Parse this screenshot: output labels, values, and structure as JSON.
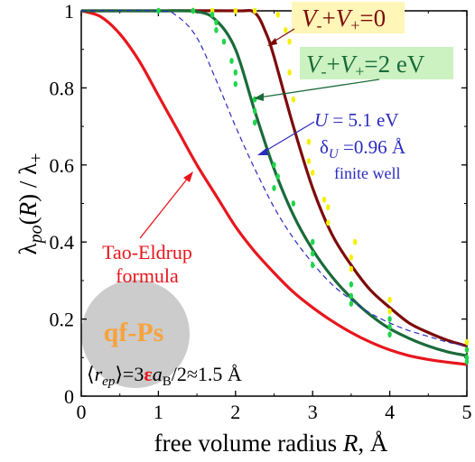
{
  "chart_data": {
    "type": "line",
    "xlabel": "free volume radius R, Å",
    "ylabel": "λpo(R) / λ+",
    "xlim": [
      0,
      5
    ],
    "ylim": [
      0,
      1
    ],
    "xticks": [
      0,
      1,
      2,
      3,
      4,
      5
    ],
    "yticks": [
      0,
      0.2,
      0.4,
      0.6,
      0.8,
      1
    ],
    "ytick_labels": [
      "0",
      "0.2",
      "0.4",
      "0.6",
      "0.8",
      "1"
    ],
    "series": [
      {
        "name": "Tao-Eldrup formula",
        "color": "#e8161c",
        "style": "solid",
        "x": [
          0,
          0.25,
          0.5,
          0.75,
          1.0,
          1.25,
          1.5,
          1.75,
          2.0,
          2.25,
          2.5,
          2.75,
          3.0,
          3.25,
          3.5,
          3.75,
          4.0,
          4.25,
          4.5,
          4.75,
          5.0
        ],
        "y": [
          1.0,
          0.985,
          0.94,
          0.87,
          0.78,
          0.69,
          0.6,
          0.52,
          0.44,
          0.375,
          0.32,
          0.27,
          0.23,
          0.195,
          0.165,
          0.14,
          0.12,
          0.105,
          0.095,
          0.088,
          0.082
        ]
      },
      {
        "name": "V-+V+=0",
        "color": "#7d0a0a",
        "style": "solid",
        "x": [
          0,
          1.0,
          2.0,
          2.25,
          2.4,
          2.5,
          2.75,
          3.0,
          3.25,
          3.5,
          3.75,
          4.0,
          4.25,
          4.5,
          4.75,
          5.0
        ],
        "y": [
          1.0,
          1.0,
          1.0,
          0.995,
          0.94,
          0.88,
          0.7,
          0.54,
          0.42,
          0.34,
          0.275,
          0.23,
          0.19,
          0.165,
          0.145,
          0.13
        ]
      },
      {
        "name": "V-+V+=2 eV",
        "color": "#1a6b3a",
        "style": "solid",
        "x": [
          0,
          1.0,
          1.5,
          1.75,
          2.0,
          2.25,
          2.5,
          2.75,
          3.0,
          3.25,
          3.5,
          3.75,
          4.0,
          4.25,
          4.5,
          4.75,
          5.0
        ],
        "y": [
          1.0,
          1.0,
          0.998,
          0.975,
          0.9,
          0.74,
          0.59,
          0.47,
          0.38,
          0.31,
          0.255,
          0.21,
          0.175,
          0.15,
          0.13,
          0.115,
          0.105
        ]
      },
      {
        "name": "U = 5.1 eV, δU=0.96 Å finite well",
        "color": "#2b2bbf",
        "style": "dashed",
        "x": [
          0,
          1.0,
          1.25,
          1.5,
          1.75,
          2.0,
          2.25,
          2.5,
          2.75,
          3.0,
          3.25,
          3.5,
          3.75,
          4.0,
          4.25,
          4.5,
          4.75,
          5.0
        ],
        "y": [
          1.0,
          1.0,
          0.985,
          0.93,
          0.82,
          0.7,
          0.59,
          0.49,
          0.41,
          0.345,
          0.29,
          0.25,
          0.215,
          0.19,
          0.17,
          0.155,
          0.14,
          0.13
        ]
      }
    ],
    "scatter": [
      {
        "color": "#f5f000",
        "points": [
          [
            1.45,
            1.0
          ],
          [
            1.7,
            1.0
          ],
          [
            2.0,
            1.0
          ],
          [
            2.25,
            1.0
          ],
          [
            2.55,
            0.99
          ],
          [
            2.65,
            0.95
          ],
          [
            2.7,
            0.92
          ],
          [
            2.7,
            0.84
          ],
          [
            2.75,
            0.77
          ],
          [
            2.95,
            0.66
          ],
          [
            2.95,
            0.61
          ],
          [
            3.0,
            0.58
          ],
          [
            3.15,
            0.51
          ],
          [
            3.2,
            0.49
          ],
          [
            3.2,
            0.45
          ],
          [
            3.55,
            0.4
          ],
          [
            3.5,
            0.36
          ],
          [
            3.5,
            0.33
          ],
          [
            4.0,
            0.25
          ],
          [
            4.0,
            0.22
          ],
          [
            5.0,
            0.14
          ],
          [
            5.0,
            0.12
          ]
        ]
      },
      {
        "color": "#1ed64a",
        "points": [
          [
            1.0,
            1.0
          ],
          [
            1.45,
            1.0
          ],
          [
            1.7,
            0.99
          ],
          [
            1.75,
            0.97
          ],
          [
            1.75,
            0.95
          ],
          [
            1.85,
            0.92
          ],
          [
            1.95,
            0.87
          ],
          [
            2.0,
            0.84
          ],
          [
            2.0,
            0.81
          ],
          [
            2.25,
            0.77
          ],
          [
            2.25,
            0.74
          ],
          [
            2.25,
            0.71
          ],
          [
            2.5,
            0.6
          ],
          [
            2.55,
            0.57
          ],
          [
            2.5,
            0.54
          ],
          [
            2.75,
            0.5
          ],
          [
            3.0,
            0.4
          ],
          [
            3.0,
            0.37
          ],
          [
            3.0,
            0.34
          ],
          [
            3.5,
            0.29
          ],
          [
            3.5,
            0.26
          ],
          [
            3.5,
            0.24
          ],
          [
            4.0,
            0.2
          ],
          [
            4.0,
            0.18
          ],
          [
            4.0,
            0.16
          ],
          [
            5.0,
            0.12
          ],
          [
            5.0,
            0.1
          ],
          [
            5.0,
            0.09
          ]
        ]
      }
    ],
    "annotations": {
      "v0": {
        "pre": "V",
        "sub1": "-",
        "mid": "+",
        "v2": "V",
        "sub2": "+",
        "post": "=0"
      },
      "v2": {
        "pre": "V",
        "sub1": "-",
        "mid": "+",
        "v2": "V",
        "sub2": "+",
        "post": "=2 eV"
      },
      "well_line1": "U = 5.1 eV",
      "well_line2": "δU =0.96 Å",
      "well_line3": "finite well",
      "tao_line1": "Tao-Eldrup",
      "tao_line2": "formula",
      "qf_label": "qf-Ps",
      "rep_text": "⟨rep⟩=3εaB/2≈1.5 Å"
    },
    "colors": {
      "tao": "#e8161c",
      "v0": "#7d0a0a",
      "v2": "#1a6b3a",
      "well": "#2b2bbf",
      "v0_box": "#fff6b8",
      "v2_box": "#cdf2c2",
      "qf_circle": "#cccccc",
      "qf_text": "#f7a23b"
    }
  }
}
